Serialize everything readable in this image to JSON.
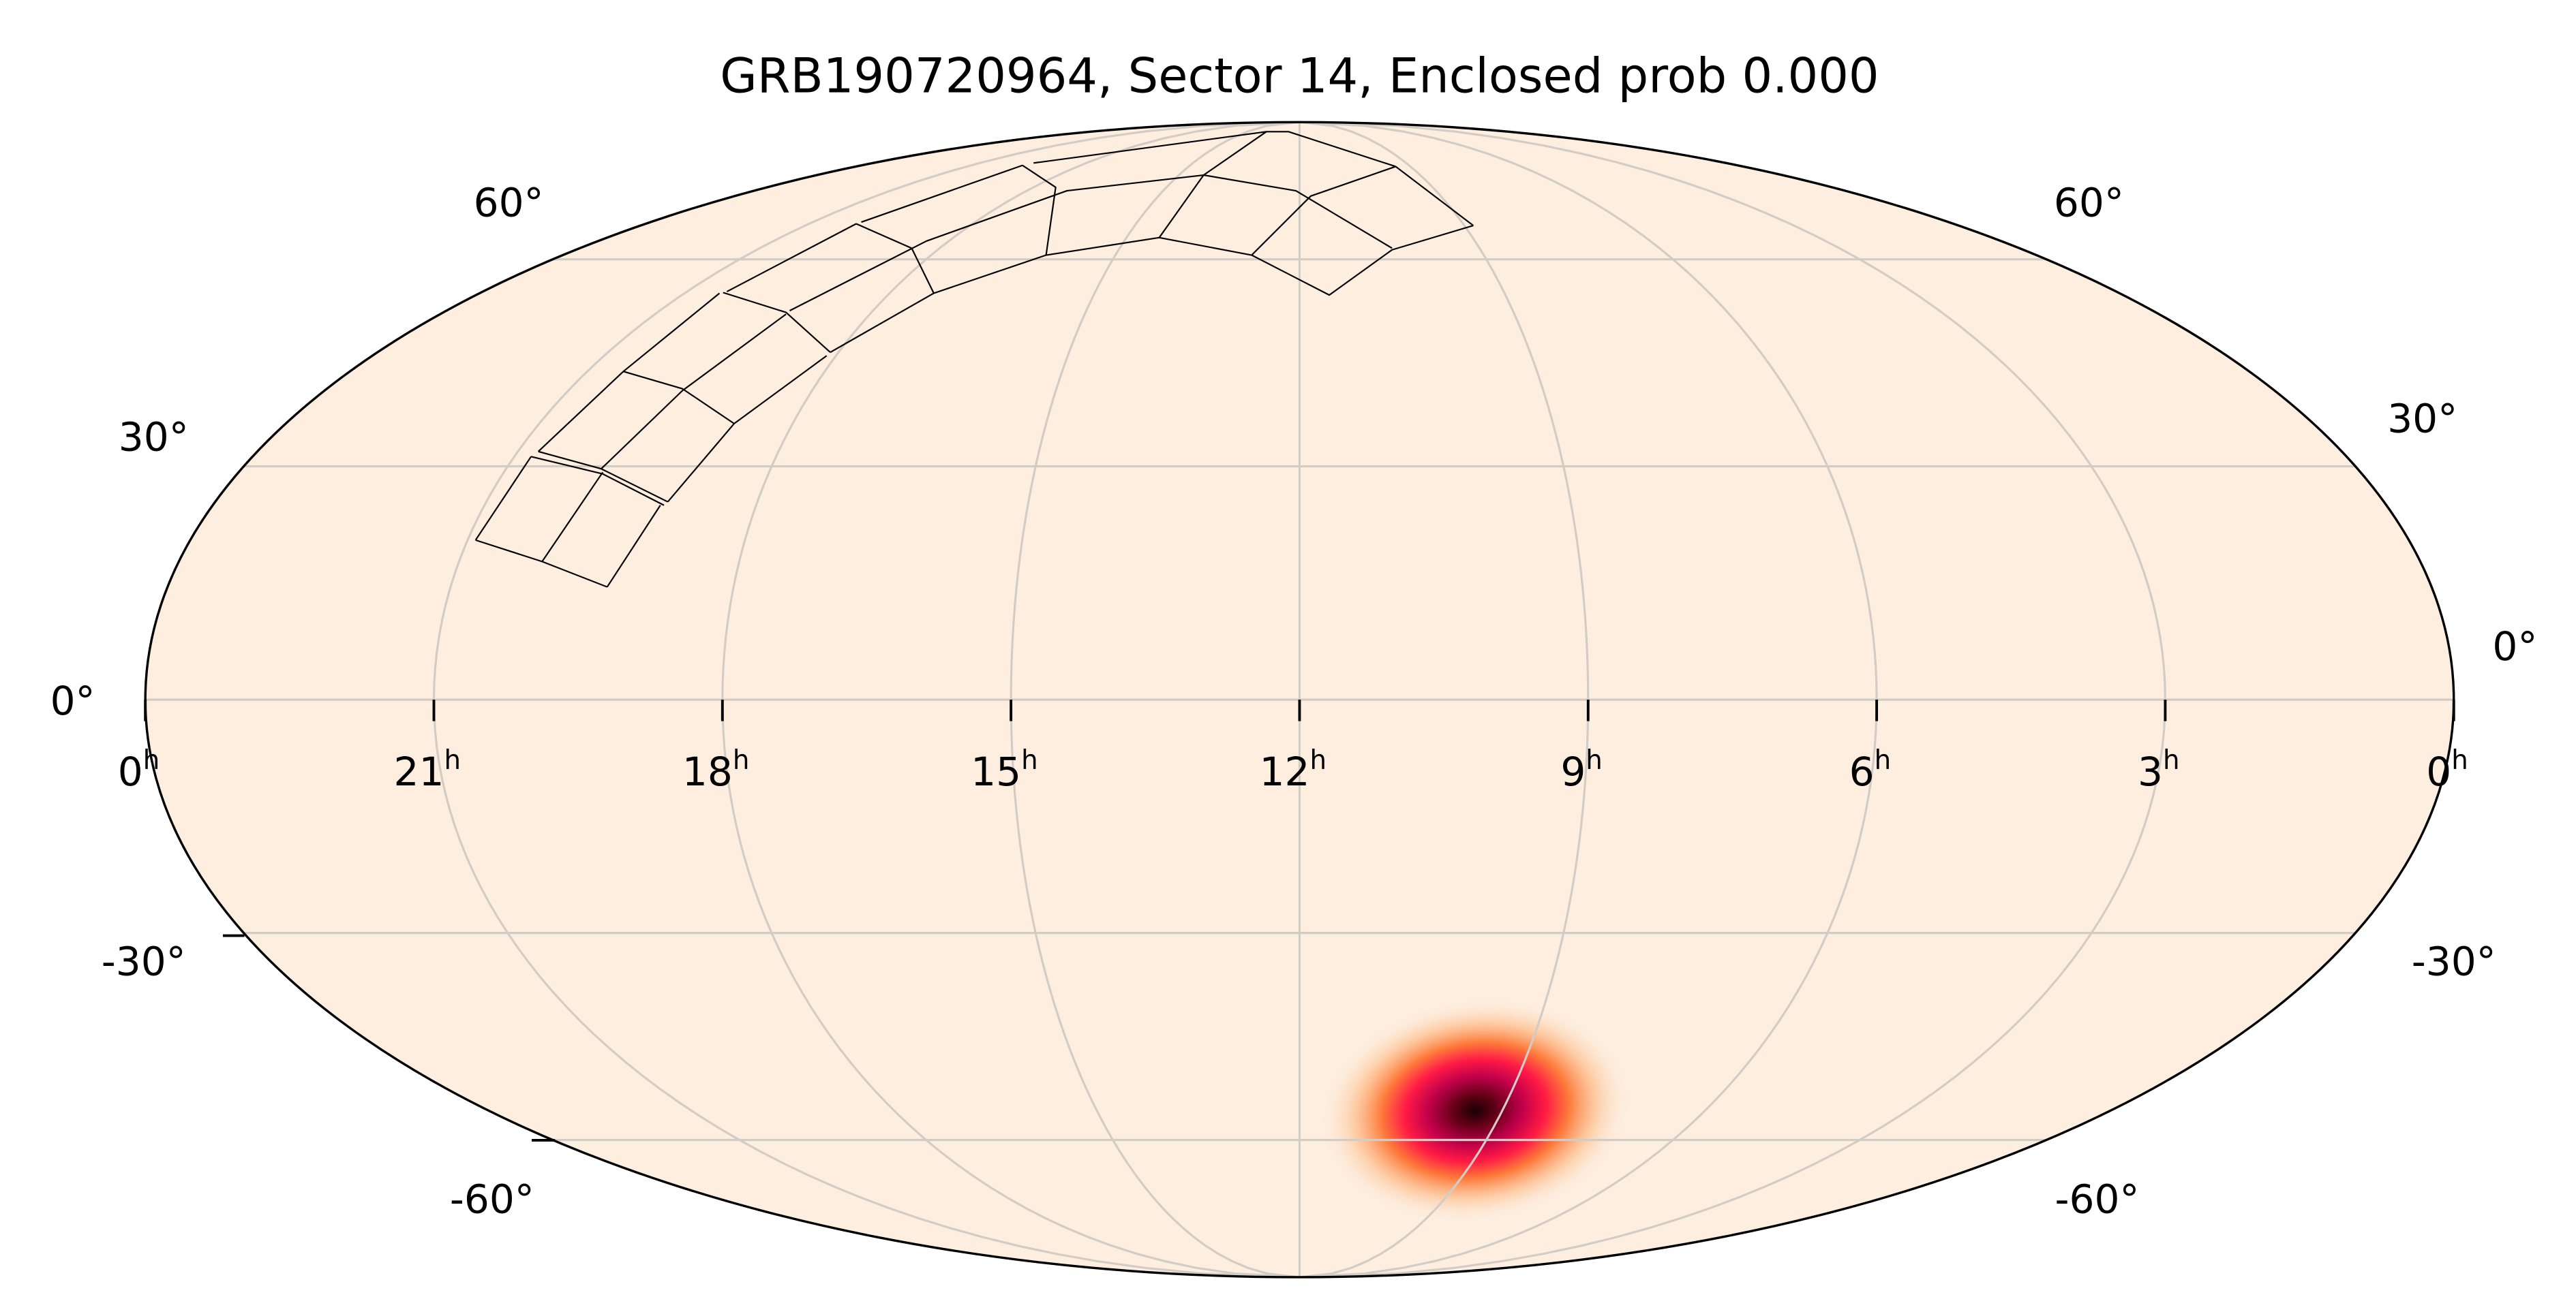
{
  "chart_data": {
    "type": "heatmap",
    "projection": "mollweide",
    "title": "GRB190720964, Sector 14, Enclosed prob 0.000",
    "ra_axis": {
      "direction": "reversed",
      "tick_values_hours": [
        24,
        21,
        18,
        15,
        12,
        9,
        6,
        3,
        0
      ],
      "tick_labels": [
        {
          "value": "0",
          "sup": "h"
        },
        {
          "value": "21",
          "sup": "h"
        },
        {
          "value": "18",
          "sup": "h"
        },
        {
          "value": "15",
          "sup": "h"
        },
        {
          "value": "12",
          "sup": "h"
        },
        {
          "value": "9",
          "sup": "h"
        },
        {
          "value": "6",
          "sup": "h"
        },
        {
          "value": "3",
          "sup": "h"
        },
        {
          "value": "0",
          "sup": "h"
        }
      ]
    },
    "dec_axis": {
      "tick_values_deg": [
        60,
        30,
        0,
        -30,
        -60
      ],
      "left_labels": [
        "60°",
        "30°",
        "0°",
        "-30°",
        "-60°"
      ],
      "right_labels": [
        "60°",
        "30°",
        "0°",
        "-30°",
        "-60°"
      ]
    },
    "grid": true,
    "probability_peak": {
      "ra_hours": 9.4,
      "dec_deg": -55.3
    },
    "footprint": "TESS Sector 14 cameras (outlined tiles, northern sky)",
    "colors": {
      "background": "#fdeee0",
      "grid": "#d2ccc6",
      "colormap": [
        "#fdeee0",
        "#fdc08f",
        "#fd7a3a",
        "#ff1a45",
        "#c0004a",
        "#5a0012",
        "#1a0005"
      ],
      "footprint_outline": "#000000"
    }
  }
}
